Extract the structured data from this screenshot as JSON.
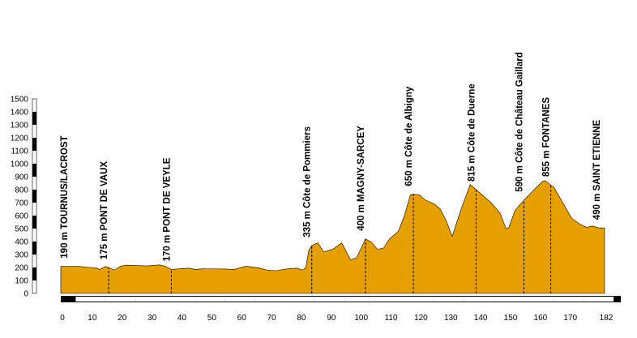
{
  "chart_data": {
    "type": "area",
    "title": "",
    "xlabel": "",
    "ylabel": "",
    "xlim": [
      0,
      182
    ],
    "ylim": [
      0,
      1500
    ],
    "y_ticks": [
      "0",
      "100",
      "200",
      "300",
      "400",
      "500",
      "600",
      "700",
      "800",
      "900",
      "1000",
      "1100",
      "1200",
      "1300",
      "1400",
      "1500"
    ],
    "x_ticks": [
      "0",
      "10",
      "20",
      "30",
      "40",
      "50",
      "60",
      "70",
      "80",
      "90",
      "100",
      "110",
      "120",
      "130",
      "140",
      "150",
      "160",
      "170",
      "182"
    ],
    "colors": {
      "fill": "#e5a000",
      "stroke": "#000000",
      "marker": "#000000"
    },
    "profile": [
      {
        "x": 0,
        "y": 208
      },
      {
        "x": 6,
        "y": 208
      },
      {
        "x": 10,
        "y": 200
      },
      {
        "x": 12,
        "y": 195
      },
      {
        "x": 13,
        "y": 185
      },
      {
        "x": 15,
        "y": 208
      },
      {
        "x": 17,
        "y": 190
      },
      {
        "x": 18,
        "y": 180
      },
      {
        "x": 20,
        "y": 210
      },
      {
        "x": 22,
        "y": 218
      },
      {
        "x": 25,
        "y": 215
      },
      {
        "x": 29,
        "y": 212
      },
      {
        "x": 33,
        "y": 220
      },
      {
        "x": 35,
        "y": 210
      },
      {
        "x": 37,
        "y": 185
      },
      {
        "x": 40,
        "y": 190
      },
      {
        "x": 43,
        "y": 195
      },
      {
        "x": 45,
        "y": 185
      },
      {
        "x": 48,
        "y": 190
      },
      {
        "x": 55,
        "y": 188
      },
      {
        "x": 58,
        "y": 185
      },
      {
        "x": 62,
        "y": 210
      },
      {
        "x": 66,
        "y": 198
      },
      {
        "x": 69,
        "y": 180
      },
      {
        "x": 72,
        "y": 175
      },
      {
        "x": 76,
        "y": 190
      },
      {
        "x": 79,
        "y": 195
      },
      {
        "x": 81,
        "y": 180
      },
      {
        "x": 82,
        "y": 200
      },
      {
        "x": 83,
        "y": 330
      },
      {
        "x": 84,
        "y": 370
      },
      {
        "x": 86,
        "y": 390
      },
      {
        "x": 88,
        "y": 320
      },
      {
        "x": 91,
        "y": 340
      },
      {
        "x": 94,
        "y": 390
      },
      {
        "x": 97,
        "y": 260
      },
      {
        "x": 99,
        "y": 275
      },
      {
        "x": 102,
        "y": 420
      },
      {
        "x": 104,
        "y": 395
      },
      {
        "x": 106,
        "y": 340
      },
      {
        "x": 108,
        "y": 350
      },
      {
        "x": 110,
        "y": 420
      },
      {
        "x": 113,
        "y": 480
      },
      {
        "x": 115,
        "y": 600
      },
      {
        "x": 117,
        "y": 760
      },
      {
        "x": 118,
        "y": 765
      },
      {
        "x": 120,
        "y": 760
      },
      {
        "x": 122,
        "y": 720
      },
      {
        "x": 125,
        "y": 690
      },
      {
        "x": 127,
        "y": 650
      },
      {
        "x": 129,
        "y": 560
      },
      {
        "x": 131,
        "y": 440
      },
      {
        "x": 134,
        "y": 650
      },
      {
        "x": 137,
        "y": 840
      },
      {
        "x": 139,
        "y": 800
      },
      {
        "x": 141,
        "y": 760
      },
      {
        "x": 144,
        "y": 700
      },
      {
        "x": 147,
        "y": 620
      },
      {
        "x": 149,
        "y": 500
      },
      {
        "x": 150,
        "y": 510
      },
      {
        "x": 152,
        "y": 640
      },
      {
        "x": 155,
        "y": 720
      },
      {
        "x": 158,
        "y": 790
      },
      {
        "x": 161,
        "y": 860
      },
      {
        "x": 162,
        "y": 870
      },
      {
        "x": 165,
        "y": 820
      },
      {
        "x": 168,
        "y": 700
      },
      {
        "x": 171,
        "y": 580
      },
      {
        "x": 174,
        "y": 530
      },
      {
        "x": 176,
        "y": 510
      },
      {
        "x": 178,
        "y": 520
      },
      {
        "x": 180,
        "y": 505
      },
      {
        "x": 182,
        "y": 505
      }
    ],
    "markers": [
      {
        "x": 0,
        "y": 190,
        "label": "190 m TOURNUS/LACROST"
      },
      {
        "x": 16,
        "y": 175,
        "label": "175 m PONT DE VAUX"
      },
      {
        "x": 37,
        "y": 170,
        "label": "170 m PONT DE VEYLE"
      },
      {
        "x": 84,
        "y": 335,
        "label": "335 m Côte de Pommiers"
      },
      {
        "x": 102,
        "y": 400,
        "label": "400 m MAGNY-SARCEY"
      },
      {
        "x": 118,
        "y": 650,
        "label": "650 m Côte de Albigny"
      },
      {
        "x": 139,
        "y": 815,
        "label": "815 m Côte de Duerne"
      },
      {
        "x": 155,
        "y": 590,
        "label": "590 m Côte de Château Gaillard"
      },
      {
        "x": 164,
        "y": 855,
        "label": "855 m FONTANES"
      },
      {
        "x": 182,
        "y": 490,
        "label": "490 m SAINT ETIENNE"
      }
    ]
  }
}
